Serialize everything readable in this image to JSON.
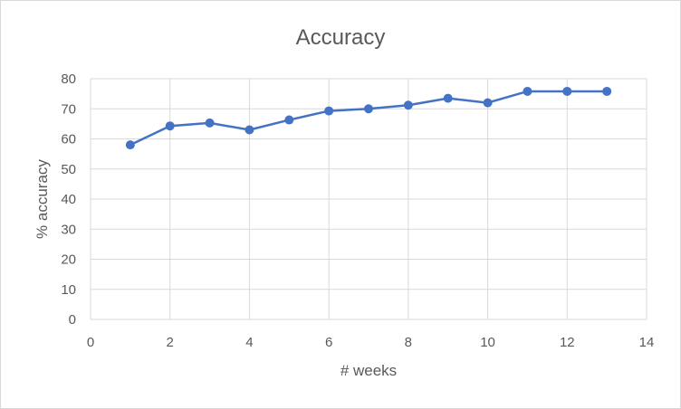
{
  "chart_data": {
    "type": "scatter",
    "mode": "lines+markers",
    "title": "Accuracy",
    "xlabel": "# weeks",
    "ylabel": "% accuracy",
    "xlim": [
      0,
      14
    ],
    "ylim": [
      0,
      80
    ],
    "xticks": [
      0,
      2,
      4,
      6,
      8,
      10,
      12,
      14
    ],
    "yticks": [
      0,
      10,
      20,
      30,
      40,
      50,
      60,
      70,
      80
    ],
    "grid": "vertical and horizontal major gridlines",
    "legend": "none",
    "series": [
      {
        "color": "#4472C4",
        "x": [
          1,
          2,
          3,
          4,
          5,
          6,
          7,
          8,
          9,
          10,
          11,
          12,
          13
        ],
        "y": [
          58,
          64.3,
          65.3,
          63,
          66.3,
          69.3,
          70,
          71.2,
          73.5,
          72,
          75.8,
          75.8,
          75.8
        ]
      }
    ]
  }
}
